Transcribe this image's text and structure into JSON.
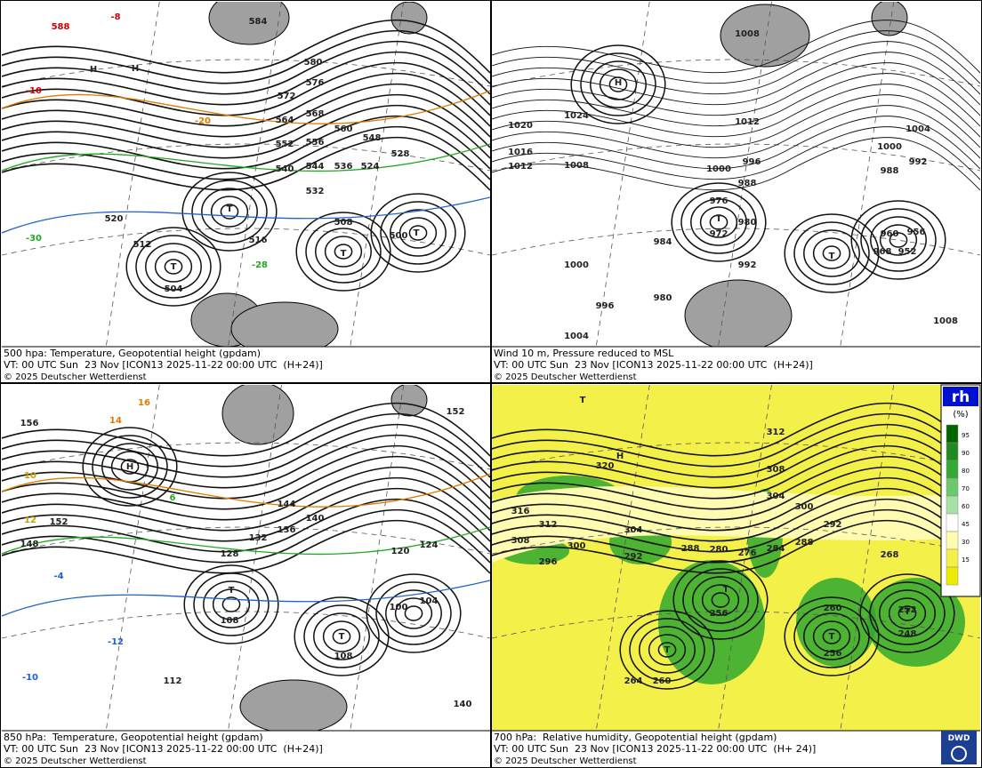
{
  "panels": [
    {
      "caption": [
        "500 hpa: Temperature, Geopotential height (gpdam)",
        "VT: 00 UTC Sun  23 Nov [ICON13 2025-11-22 00:00 UTC  (H+24)]",
        "© 2025 Deutscher Wetterdienst"
      ],
      "labels": [
        "588",
        "584",
        "580",
        "576",
        "572",
        "568",
        "564",
        "560",
        "556",
        "552",
        "548",
        "544",
        "540",
        "536",
        "532",
        "528",
        "524",
        "520",
        "516",
        "512",
        "508",
        "504",
        "500",
        "H",
        "H",
        "T",
        "T",
        "T",
        "T",
        "-10",
        "-20",
        "-30",
        "-8",
        "-28"
      ]
    },
    {
      "caption": [
        "Wind 10 m, Pressure reduced to MSL",
        "VT: 00 UTC Sun  23 Nov [ICON13 2025-11-22 00:00 UTC  (H+24)]",
        "© 2025 Deutscher Wetterdienst"
      ],
      "labels": [
        "1024",
        "1020",
        "1016",
        "1012",
        "1008",
        "1012",
        "1000",
        "996",
        "988",
        "976",
        "972",
        "980",
        "984",
        "992",
        "1000",
        "980",
        "996",
        "1004",
        "1000",
        "992",
        "960",
        "956",
        "952",
        "968",
        "1008",
        "1004",
        "H",
        "T",
        "T",
        "1008",
        "988"
      ]
    },
    {
      "caption": [
        "850 hPa:  Temperature, Geopotential height (gpdam)",
        "VT: 00 UTC Sun  23 Nov [ICON13 2025-11-22 00:00 UTC  (H+24)]",
        "© 2025 Deutscher Wetterdienst"
      ],
      "labels": [
        "156",
        "152",
        "148",
        "144",
        "140",
        "136",
        "132",
        "128",
        "124",
        "120",
        "108",
        "108",
        "100",
        "104",
        "112",
        "H",
        "T",
        "T",
        "16",
        "14",
        "10",
        "12",
        "6",
        "-4",
        "-12",
        "-10",
        "152",
        "140"
      ]
    },
    {
      "caption": [
        "700 hPa:  Relative humidity, Geopotential height (gpdam)",
        "VT: 00 UTC Sun  23 Nov [ICON13 2025-11-22 00:00 UTC  (H+ 24)]",
        "© 2025 Deutscher Wetterdienst"
      ],
      "labels": [
        "320",
        "316",
        "312",
        "308",
        "304",
        "300",
        "296",
        "292",
        "288",
        "280",
        "276",
        "284",
        "288",
        "292",
        "300",
        "304",
        "308",
        "312",
        "268",
        "256",
        "260",
        "264",
        "260",
        "256",
        "252",
        "248",
        "T",
        "H",
        "T",
        "T",
        "T",
        "T"
      ]
    }
  ],
  "legend": {
    "title": "rh",
    "unit": "(%)",
    "ticks": [
      "95",
      "90",
      "80",
      "70",
      "60",
      "45",
      "30",
      "15"
    ]
  },
  "logo": "DWD"
}
